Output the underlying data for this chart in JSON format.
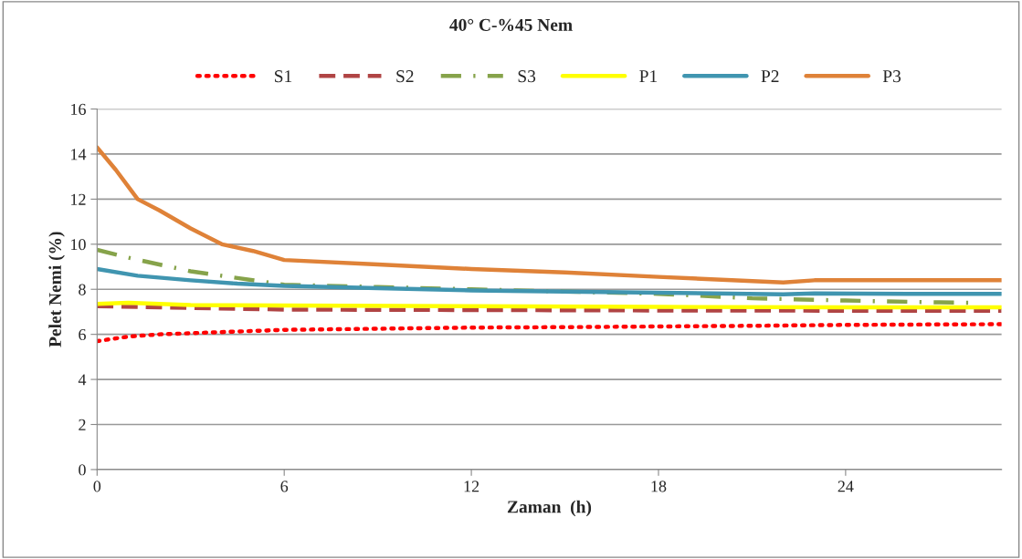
{
  "chart_data": {
    "type": "line",
    "title": "40° C-%45 Nem",
    "xlabel": "Zaman  (h)",
    "ylabel": "Pelet Nemi (%)",
    "xlim": [
      0,
      29
    ],
    "xticks": [
      0,
      6,
      12,
      18,
      24
    ],
    "ylim": [
      0,
      16
    ],
    "yticks": [
      0,
      2,
      4,
      6,
      8,
      10,
      12,
      14,
      16
    ],
    "grid": "y",
    "legend": "top",
    "marker": "none",
    "series": [
      {
        "name": "S1",
        "color": "#ff0000",
        "line_style": "dotted",
        "x": [
          0,
          1,
          2,
          4,
          6,
          9,
          12,
          15,
          18,
          21,
          24,
          27,
          29
        ],
        "values": [
          5.7,
          5.9,
          6.0,
          6.1,
          6.2,
          6.25,
          6.3,
          6.32,
          6.35,
          6.38,
          6.42,
          6.44,
          6.45
        ]
      },
      {
        "name": "S2",
        "color": "#b04444",
        "line_style": "dashed",
        "x": [
          0,
          2,
          6,
          12,
          18,
          24,
          29
        ],
        "values": [
          7.25,
          7.2,
          7.1,
          7.08,
          7.06,
          7.05,
          7.05
        ]
      },
      {
        "name": "S3",
        "color": "#86a34a",
        "line_style": "dashdot",
        "x": [
          0,
          1,
          3,
          4.5,
          6,
          9,
          12,
          15,
          18,
          21,
          24,
          27,
          28
        ],
        "values": [
          9.75,
          9.4,
          8.8,
          8.5,
          8.2,
          8.1,
          8.0,
          7.9,
          7.8,
          7.6,
          7.5,
          7.42,
          7.4
        ]
      },
      {
        "name": "P1",
        "color": "#ffff00",
        "line_style": "solid",
        "x": [
          0,
          1,
          3,
          6,
          12,
          18,
          24,
          29
        ],
        "values": [
          7.35,
          7.4,
          7.3,
          7.28,
          7.25,
          7.22,
          7.2,
          7.2
        ]
      },
      {
        "name": "P2",
        "color": "#4095b0",
        "line_style": "solid",
        "x": [
          0,
          1.3,
          3,
          4.5,
          6,
          9,
          12,
          15,
          18,
          22,
          23,
          26,
          29
        ],
        "values": [
          8.9,
          8.6,
          8.4,
          8.25,
          8.15,
          8.05,
          7.95,
          7.9,
          7.85,
          7.78,
          7.82,
          7.8,
          7.8
        ]
      },
      {
        "name": "P3",
        "color": "#df8238",
        "line_style": "solid",
        "x": [
          0,
          0.6,
          1.3,
          2,
          3,
          4,
          5,
          6,
          9,
          12,
          15,
          18,
          22,
          23,
          26,
          29
        ],
        "values": [
          14.3,
          13.3,
          12.0,
          11.5,
          10.7,
          10.0,
          9.7,
          9.3,
          9.1,
          8.9,
          8.75,
          8.55,
          8.3,
          8.4,
          8.4,
          8.4
        ]
      }
    ]
  }
}
